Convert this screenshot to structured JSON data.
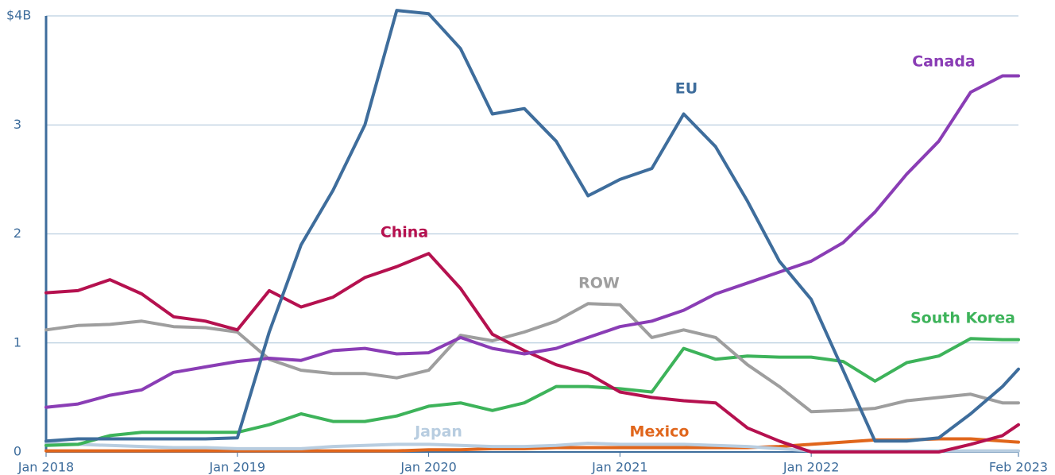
{
  "chart_data": {
    "type": "line",
    "x": [
      "2018-01",
      "2018-03",
      "2018-05",
      "2018-07",
      "2018-09",
      "2018-11",
      "2019-01",
      "2019-03",
      "2019-05",
      "2019-07",
      "2019-09",
      "2019-11",
      "2020-01",
      "2020-03",
      "2020-05",
      "2020-07",
      "2020-09",
      "2020-11",
      "2021-01",
      "2021-03",
      "2021-05",
      "2021-07",
      "2021-09",
      "2021-11",
      "2022-01",
      "2022-03",
      "2022-05",
      "2022-07",
      "2022-09",
      "2022-11",
      "2023-01",
      "2023-02"
    ],
    "xlim": [
      "2018-01",
      "2023-02"
    ],
    "xticks": [
      {
        "value": "2018-01",
        "label": "Jan 2018"
      },
      {
        "value": "2019-01",
        "label": "Jan 2019"
      },
      {
        "value": "2020-01",
        "label": "Jan 2020"
      },
      {
        "value": "2021-01",
        "label": "Jan 2021"
      },
      {
        "value": "2022-01",
        "label": "Jan 2022"
      },
      {
        "value": "2023-02",
        "label": "Feb 2023"
      }
    ],
    "ylim": [
      0,
      4
    ],
    "yticks": [
      0,
      1,
      2,
      3,
      {
        "value": 4,
        "label": "$4B"
      }
    ],
    "grid": true,
    "series": [
      {
        "name": "EU",
        "color": "#3e6d9c",
        "values": [
          0.1,
          0.12,
          0.12,
          0.12,
          0.12,
          0.12,
          0.13,
          1.1,
          1.9,
          2.4,
          3.0,
          4.05,
          4.02,
          3.7,
          3.1,
          3.15,
          2.85,
          2.35,
          2.5,
          2.6,
          3.1,
          2.8,
          2.3,
          1.75,
          1.4,
          0.75,
          0.1,
          0.1,
          0.13,
          0.35,
          0.6,
          0.76
        ]
      },
      {
        "name": "Canada",
        "color": "#8a3db5",
        "values": [
          0.41,
          0.44,
          0.52,
          0.57,
          0.73,
          0.78,
          0.83,
          0.86,
          0.84,
          0.93,
          0.95,
          0.9,
          0.91,
          1.05,
          0.95,
          0.9,
          0.95,
          1.05,
          1.15,
          1.2,
          1.3,
          1.45,
          1.55,
          1.65,
          1.75,
          1.92,
          2.2,
          2.55,
          2.85,
          3.3,
          3.45,
          3.45
        ]
      },
      {
        "name": "China",
        "color": "#b5114f",
        "values": [
          1.46,
          1.48,
          1.58,
          1.45,
          1.24,
          1.2,
          1.12,
          1.48,
          1.33,
          1.42,
          1.6,
          1.7,
          1.82,
          1.5,
          1.08,
          0.93,
          0.8,
          0.72,
          0.55,
          0.5,
          0.47,
          0.45,
          0.22,
          0.1,
          0,
          0,
          0,
          0,
          0,
          0.07,
          0.15,
          0.25
        ]
      },
      {
        "name": "ROW",
        "color": "#9e9e9e",
        "values": [
          1.12,
          1.16,
          1.17,
          1.2,
          1.15,
          1.14,
          1.1,
          0.85,
          0.75,
          0.72,
          0.72,
          0.68,
          0.75,
          1.07,
          1.02,
          1.1,
          1.2,
          1.36,
          1.35,
          1.05,
          1.12,
          1.05,
          0.8,
          0.6,
          0.37,
          0.38,
          0.4,
          0.47,
          0.5,
          0.53,
          0.45,
          0.45
        ]
      },
      {
        "name": "South Korea",
        "color": "#3db35a",
        "values": [
          0.06,
          0.07,
          0.15,
          0.18,
          0.18,
          0.18,
          0.18,
          0.25,
          0.35,
          0.28,
          0.28,
          0.33,
          0.42,
          0.45,
          0.38,
          0.45,
          0.6,
          0.6,
          0.58,
          0.55,
          0.95,
          0.85,
          0.88,
          0.87,
          0.87,
          0.83,
          0.65,
          0.82,
          0.88,
          1.04,
          1.03,
          1.03
        ]
      },
      {
        "name": "Japan",
        "color": "#b8cde0",
        "values": [
          0.08,
          0.07,
          0.06,
          0.05,
          0.04,
          0.04,
          0.03,
          0.03,
          0.03,
          0.05,
          0.06,
          0.07,
          0.07,
          0.06,
          0.05,
          0.05,
          0.06,
          0.08,
          0.07,
          0.07,
          0.07,
          0.06,
          0.05,
          0.03,
          0.01,
          0.01,
          0.01,
          0.01,
          0.01,
          0.01,
          0.01,
          0.01
        ]
      },
      {
        "name": "Mexico",
        "color": "#e0661c",
        "values": [
          0.01,
          0.01,
          0.01,
          0.01,
          0.01,
          0.01,
          0.01,
          0.01,
          0.01,
          0.01,
          0.01,
          0.01,
          0.02,
          0.02,
          0.03,
          0.03,
          0.04,
          0.04,
          0.04,
          0.04,
          0.04,
          0.04,
          0.04,
          0.05,
          0.07,
          0.09,
          0.11,
          0.11,
          0.12,
          0.12,
          0.1,
          0.09
        ]
      }
    ]
  }
}
